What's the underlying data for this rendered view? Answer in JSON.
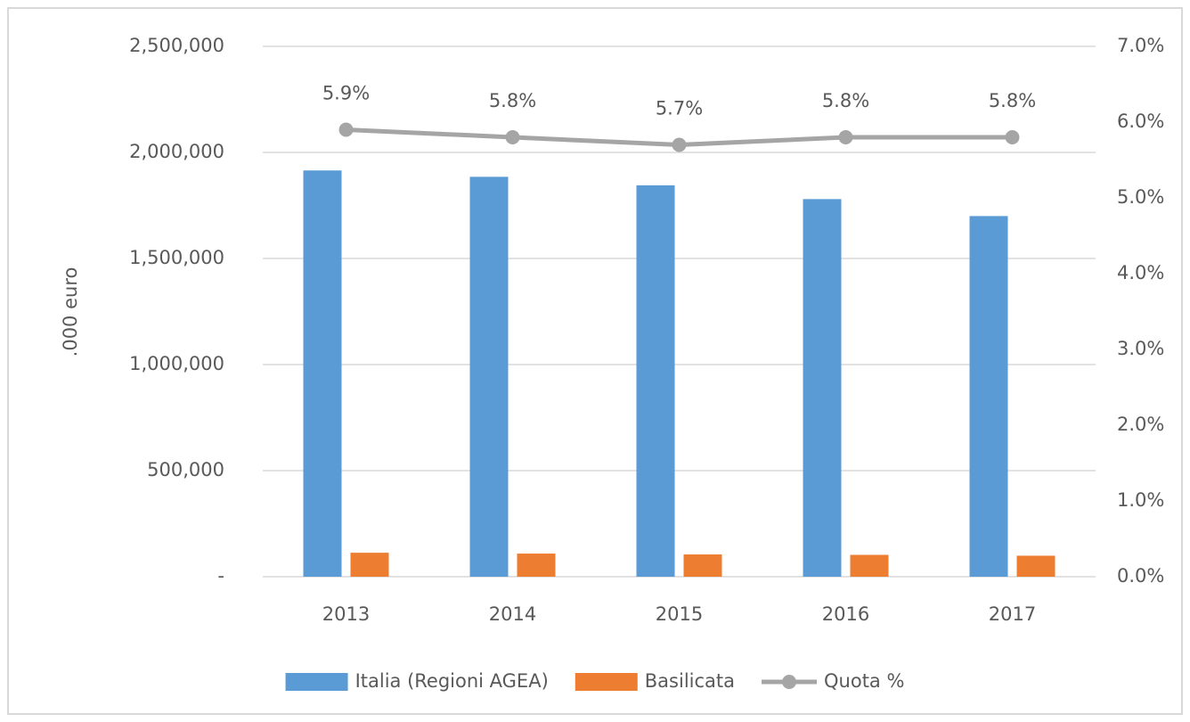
{
  "chart_data": {
    "type": "bar_line",
    "y_axis_label": ".000 euro",
    "categories": [
      "2013",
      "2014",
      "2015",
      "2016",
      "2017"
    ],
    "series": [
      {
        "name": "Italia (Regioni AGEA)",
        "color": "#5b9bd5",
        "type": "bar",
        "values": [
          1915000,
          1885000,
          1845000,
          1780000,
          1700000
        ]
      },
      {
        "name": "Basilicata",
        "color": "#ed7d31",
        "type": "bar",
        "values": [
          113000,
          109000,
          105000,
          103000,
          99000
        ]
      },
      {
        "name": "Quota %",
        "color": "#a5a5a5",
        "type": "line",
        "axis": "y2",
        "values": [
          5.9,
          5.8,
          5.7,
          5.8,
          5.8
        ],
        "value_labels": [
          "5.9%",
          "5.8%",
          "5.7%",
          "5.8%",
          "5.8%"
        ]
      }
    ],
    "ylim": [
      0,
      2500000
    ],
    "yticks": [
      {
        "value": 0,
        "label": "-"
      },
      {
        "value": 500000,
        "label": "500,000"
      },
      {
        "value": 1000000,
        "label": "1,000,000"
      },
      {
        "value": 1500000,
        "label": "1,500,000"
      },
      {
        "value": 2000000,
        "label": "2,000,000"
      },
      {
        "value": 2500000,
        "label": "2,500,000"
      }
    ],
    "y2lim": [
      0,
      7
    ],
    "y2ticks": [
      {
        "value": 0,
        "label": "0.0%"
      },
      {
        "value": 1,
        "label": "1.0%"
      },
      {
        "value": 2,
        "label": "2.0%"
      },
      {
        "value": 3,
        "label": "3.0%"
      },
      {
        "value": 4,
        "label": "4.0%"
      },
      {
        "value": 5,
        "label": "5.0%"
      },
      {
        "value": 6,
        "label": "6.0%"
      },
      {
        "value": 7,
        "label": "7.0%"
      }
    ],
    "grid": true,
    "legend": "bottom"
  }
}
